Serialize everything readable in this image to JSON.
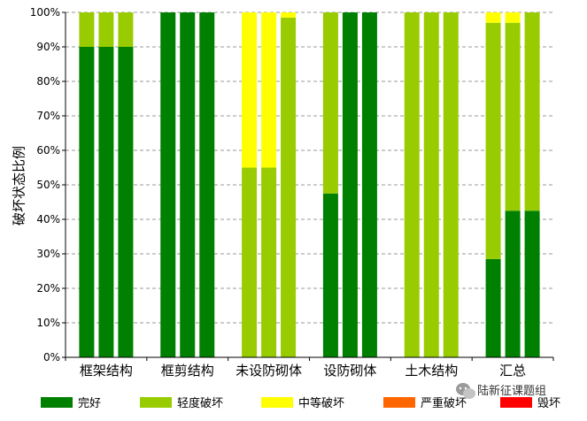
{
  "chart_data": {
    "type": "bar",
    "stacked": true,
    "grouped_bars_per_category": 3,
    "ylabel": "破坏状态比例",
    "yticks": [
      "0%",
      "10%",
      "20%",
      "30%",
      "40%",
      "50%",
      "60%",
      "70%",
      "80%",
      "90%",
      "100%"
    ],
    "ylim": [
      0,
      100
    ],
    "grid": "horizontal dashed",
    "legend_placement": "bottom",
    "categories": [
      "框架结构",
      "框剪结构",
      "未设防砌体",
      "设防砌体",
      "土木结构",
      "汇总"
    ],
    "series": [
      {
        "name": "完好",
        "color": "#008000",
        "values": [
          [
            90,
            90,
            90
          ],
          [
            100,
            100,
            100
          ],
          [
            0,
            0,
            0
          ],
          [
            47.5,
            100,
            100
          ],
          [
            0,
            0,
            0
          ],
          [
            28.5,
            42.5,
            42.5
          ]
        ]
      },
      {
        "name": "轻度破坏",
        "color": "#99cc00",
        "values": [
          [
            10,
            10,
            10
          ],
          [
            0,
            0,
            0
          ],
          [
            55,
            55,
            98.5
          ],
          [
            52.5,
            0,
            0
          ],
          [
            100,
            100,
            100
          ],
          [
            68.5,
            54.5,
            57.5
          ]
        ]
      },
      {
        "name": "中等破坏",
        "color": "#ffff00",
        "values": [
          [
            0,
            0,
            0
          ],
          [
            0,
            0,
            0
          ],
          [
            45,
            45,
            1.5
          ],
          [
            0,
            0,
            0
          ],
          [
            0,
            0,
            0
          ],
          [
            3,
            3,
            0
          ]
        ]
      },
      {
        "name": "严重破坏",
        "color": "#ff6600",
        "values": [
          [
            0,
            0,
            0
          ],
          [
            0,
            0,
            0
          ],
          [
            0,
            0,
            0
          ],
          [
            0,
            0,
            0
          ],
          [
            0,
            0,
            0
          ],
          [
            0,
            0,
            0
          ]
        ]
      },
      {
        "name": "毁坏",
        "color": "#ff0000",
        "values": [
          [
            0,
            0,
            0
          ],
          [
            0,
            0,
            0
          ],
          [
            0,
            0,
            0
          ],
          [
            0,
            0,
            0
          ],
          [
            0,
            0,
            0
          ],
          [
            0,
            0,
            0
          ]
        ]
      }
    ]
  },
  "watermark": {
    "text": "陆新征课题组",
    "icon": "wechat-icon"
  }
}
